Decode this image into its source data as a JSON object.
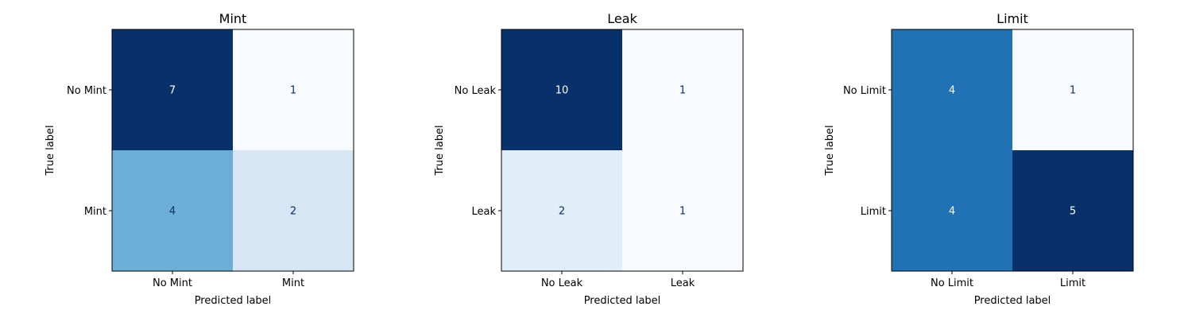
{
  "chart_data": [
    {
      "type": "heatmap",
      "title": "Mint",
      "xlabel": "Predicted label",
      "ylabel": "True label",
      "x_categories": [
        "No Mint",
        "Mint"
      ],
      "y_categories": [
        "No Mint",
        "Mint"
      ],
      "values": [
        [
          7,
          1
        ],
        [
          4,
          2
        ]
      ],
      "colormap": "Blues"
    },
    {
      "type": "heatmap",
      "title": "Leak",
      "xlabel": "Predicted label",
      "ylabel": "True label",
      "x_categories": [
        "No Leak",
        "Leak"
      ],
      "y_categories": [
        "No Leak",
        "Leak"
      ],
      "values": [
        [
          10,
          1
        ],
        [
          2,
          1
        ]
      ],
      "colormap": "Blues"
    },
    {
      "type": "heatmap",
      "title": "Limit",
      "xlabel": "Predicted label",
      "ylabel": "True label",
      "x_categories": [
        "No Limit",
        "Limit"
      ],
      "y_categories": [
        "No Limit",
        "Limit"
      ],
      "values": [
        [
          4,
          1
        ],
        [
          4,
          5
        ]
      ],
      "colormap": "Blues"
    }
  ],
  "colors": {
    "blues_low": "#f7fbff",
    "blues_high": "#08306b",
    "text_on_dark": "#ffffff",
    "text_on_light": "#08306b",
    "axis": "#000000"
  }
}
